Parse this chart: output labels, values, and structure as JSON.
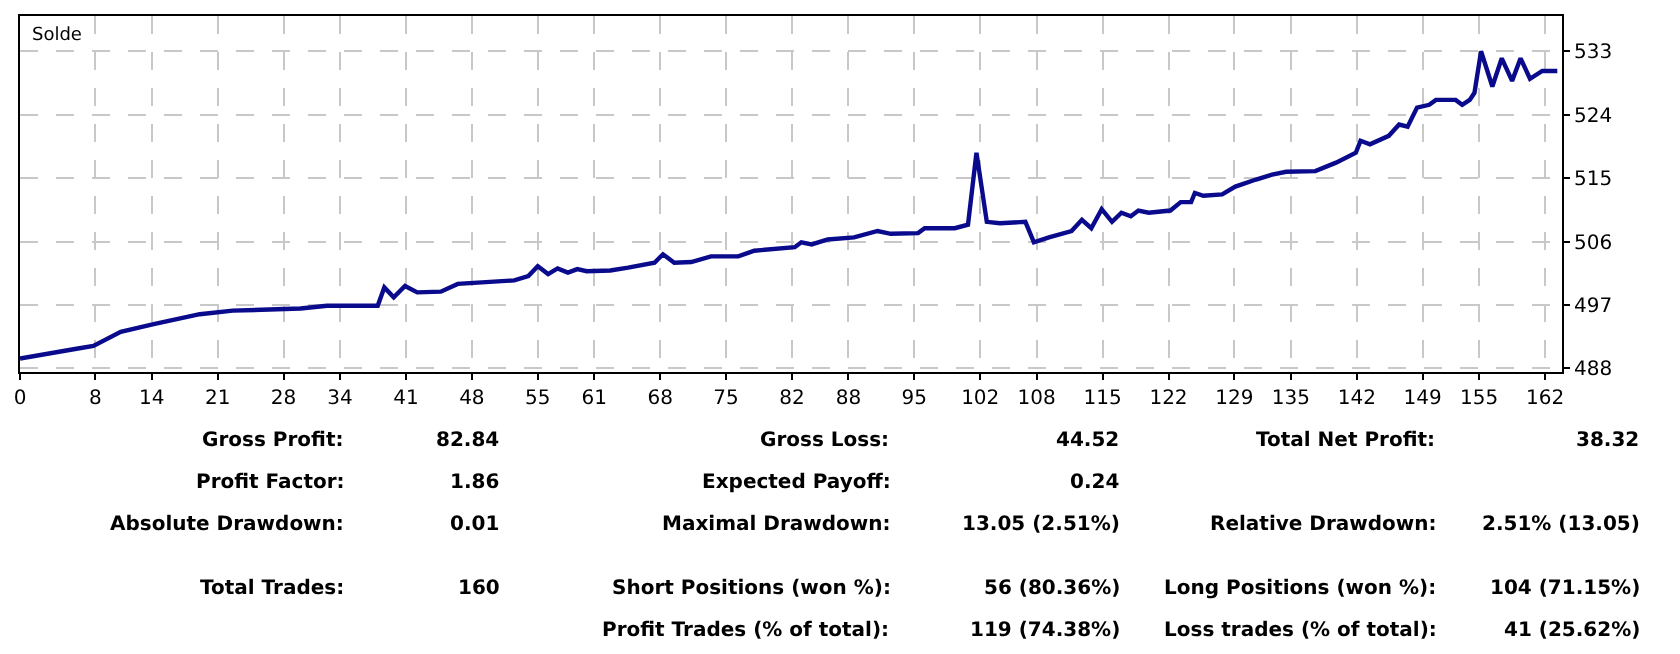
{
  "chart_data": {
    "type": "line",
    "x": [
      0,
      6.0,
      7.8,
      10.7,
      14.2,
      19.1,
      22.6,
      29.8,
      32.6,
      38.0,
      38.7,
      39.7,
      40.9,
      42.2,
      44.7,
      46.5,
      52.5,
      54,
      55,
      56.1,
      57.1,
      58.2,
      59.2,
      60.2,
      62.7,
      64.6,
      67.4,
      68.3,
      69.5,
      71.3,
      73.4,
      76.3,
      78,
      82.3,
      83,
      84.1,
      85.8,
      88.6,
      91.1,
      92.5,
      95.4,
      96.1,
      99.3,
      100.7,
      101.6,
      102.7,
      104.1,
      106.8,
      107.7,
      109.3,
      111.7,
      112.8,
      113.8,
      114.9,
      116,
      117,
      118,
      118.8,
      119.9,
      122.2,
      123.3,
      124.4,
      124.8,
      125.7,
      127.7,
      129.1,
      131.3,
      133,
      134.5,
      137.6,
      139.8,
      141.9,
      142.4,
      143.4,
      145.4,
      146.5,
      147.4,
      148.4,
      149.7,
      150.4,
      152.5,
      153.2,
      154,
      154.5,
      155.2,
      156.4,
      157.4,
      158.5,
      159.4,
      160.4,
      161.7,
      163.3
    ],
    "series": [
      {
        "color": "#0a0a8c",
        "values": [
          489.4,
          490.8,
          491.2,
          493.2,
          494.3,
          495.7,
          496.2,
          496.5,
          496.9,
          496.9,
          499.5,
          498.1,
          499.7,
          498.8,
          498.9,
          500.0,
          500.5,
          501.1,
          502.5,
          501.4,
          502.2,
          501.6,
          502.1,
          501.8,
          501.9,
          502.3,
          503.0,
          504.2,
          503.0,
          503.1,
          503.9,
          503.9,
          504.7,
          505.2,
          505.9,
          505.6,
          506.3,
          506.6,
          507.5,
          507.1,
          507.2,
          507.9,
          507.9,
          508.4,
          518.6,
          508.8,
          508.6,
          508.8,
          505.9,
          506.6,
          507.5,
          509.1,
          507.9,
          510.6,
          508.8,
          510.1,
          509.6,
          510.4,
          510.1,
          510.4,
          511.6,
          511.6,
          512.9,
          512.5,
          512.7,
          513.8,
          514.8,
          515.5,
          515.9,
          516.0,
          517.2,
          518.6,
          520.3,
          519.8,
          521.0,
          522.6,
          522.3,
          525.0,
          525.4,
          526.1,
          526.1,
          525.4,
          526.1,
          527.1,
          533.0,
          528.0,
          532.0,
          528.8,
          532.0,
          529.1,
          530.2,
          530.2
        ]
      }
    ],
    "xlim": [
      0,
      163.8
    ],
    "xticks": [
      0,
      8,
      14,
      21,
      28,
      34,
      41,
      48,
      55,
      61,
      68,
      75,
      82,
      88,
      95,
      102,
      108,
      115,
      122,
      129,
      135,
      142,
      149,
      155,
      162
    ],
    "ylim": [
      487.5,
      538
    ],
    "yticks": [
      488,
      497,
      506,
      515,
      524,
      533
    ],
    "grid": true,
    "marker": "none",
    "line_style": "solid",
    "annotations": [
      "Solde",
      "Gross Profit:",
      "82.84",
      "Gross Loss:",
      "44.52",
      "Total Net Profit:",
      "38.32",
      "Profit Factor:",
      "1.86",
      "Expected Payoff:",
      "0.24",
      "Absolute Drawdown:",
      "0.01",
      "Maximal Drawdown:",
      "13.05 (2.51%)",
      "Relative Drawdown:",
      "2.51% (13.05)",
      "Total Trades:",
      "160",
      "Short Positions (won %):",
      "56 (80.36%)",
      "Long Positions (won %):",
      "104 (71.15%)",
      "Profit Trades (% of total):",
      "119 (74.38%)",
      "Loss trades (% of total):",
      "41 (25.62%)"
    ]
  }
}
